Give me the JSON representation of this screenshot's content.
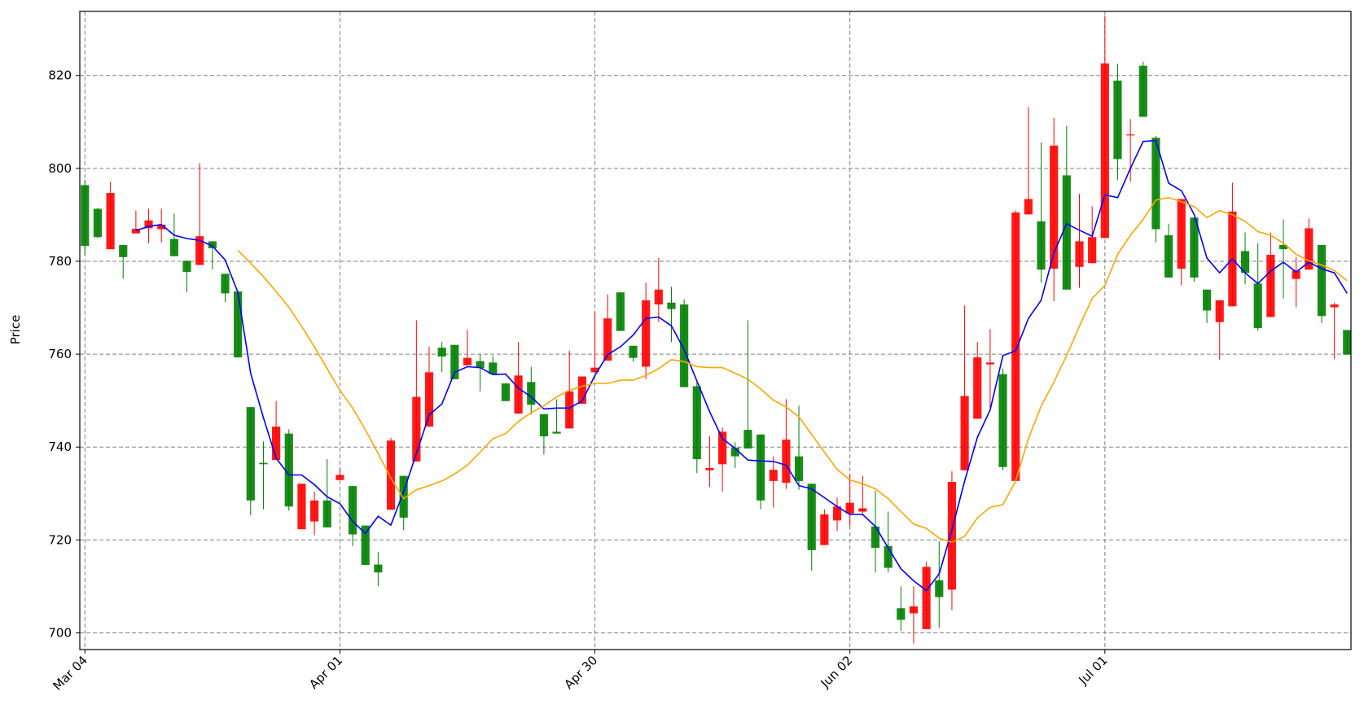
{
  "chart_data": {
    "type": "candlestick",
    "ylabel": "Price",
    "xlim": [
      -0.4,
      99.3
    ],
    "xticks": [
      {
        "value": 0,
        "label": "Mar 04"
      },
      {
        "value": 20,
        "label": "Apr 01"
      },
      {
        "value": 40,
        "label": "Apr 30"
      },
      {
        "value": 60,
        "label": "Jun 02"
      },
      {
        "value": 80,
        "label": "Jul 01"
      }
    ],
    "ylim": [
      696.4,
      833.8
    ],
    "yticks": [
      700,
      720,
      740,
      760,
      780,
      800,
      820
    ],
    "grid": true,
    "up_color": "green",
    "down_color": "red",
    "open": [
      783.3,
      785.2,
      794.7,
      780.9,
      787,
      788.8,
      787.9,
      781.1,
      777.7,
      785.4,
      782.8,
      773.1,
      759.3,
      728.5,
      736.3,
      744.4,
      727.2,
      732.1,
      728.5,
      722.7,
      734.0,
      721.2,
      714.6,
      713.0,
      741.4,
      724.8,
      750.8,
      756.1,
      759.5,
      754.6,
      759.2,
      757,
      755.7,
      749.9,
      755.4,
      749.1,
      742.3,
      742.9,
      752,
      755.2,
      757.1,
      767.7,
      765,
      759.2,
      771.6,
      773.9,
      769.7,
      752.9,
      737.4,
      735.5,
      743.3,
      738,
      739.7,
      728.5,
      735.1,
      741.6,
      732.7,
      717.8,
      725.5,
      727.2,
      728,
      726.8,
      718.3,
      714,
      702.8,
      705.7,
      714.2,
      707.7,
      732.5,
      751,
      759.3,
      758.2,
      735.7,
      790.5,
      793.4,
      778.2,
      804.9,
      773.9,
      784.3,
      785.2,
      822.6,
      802,
      807.3,
      811.1,
      786.9,
      776.5,
      793.4,
      776.5,
      769.4,
      771.6,
      790.7,
      777.5,
      765.6,
      781.4,
      782.6,
      778,
      787.1,
      768.2,
      770.7,
      759.9
    ],
    "high": [
      797.5,
      791.5,
      797.1,
      783.5,
      790.9,
      791.3,
      791.3,
      790.3,
      780.1,
      801.1,
      784.3,
      777.3,
      773.5,
      748.6,
      741.2,
      749.9,
      743.8,
      732.1,
      730.4,
      737.4,
      735.5,
      731.6,
      723.1,
      717.4,
      742,
      733.8,
      767.3,
      761.6,
      762.6,
      762,
      765.2,
      760,
      759.7,
      753.7,
      762.6,
      757.3,
      747.1,
      750.3,
      760.7,
      755.2,
      769.2,
      772.9,
      773.3,
      761.8,
      775.4,
      780.7,
      774.5,
      771.8,
      753.9,
      742.3,
      744.2,
      741,
      767.3,
      742.7,
      738,
      750.3,
      748.9,
      732.1,
      726.6,
      729.1,
      734.2,
      733.8,
      730.6,
      726.1,
      710,
      710,
      715.3,
      719.7,
      734.8,
      770.5,
      762.6,
      765.4,
      756.9,
      790.9,
      813.2,
      805.6,
      810.9,
      809.2,
      794.5,
      791.8,
      832.8,
      822.5,
      810.6,
      823,
      807,
      788.1,
      793.4,
      789.4,
      773.9,
      771.6,
      796.9,
      786.2,
      783.9,
      786.2,
      789,
      780.9,
      789.2,
      783.5,
      771.1,
      765.2
    ],
    "low": [
      781.4,
      785,
      782.6,
      776.3,
      786,
      783.9,
      784,
      781.1,
      773.3,
      779.2,
      778.2,
      771.2,
      759.3,
      725.3,
      726.6,
      737.2,
      726.3,
      722.3,
      721,
      722.7,
      732.9,
      718.7,
      714.6,
      710,
      726.5,
      722.1,
      736.9,
      744.4,
      756.1,
      754.6,
      757.6,
      752,
      755.7,
      749.9,
      747.2,
      747,
      738.4,
      742.9,
      744,
      749.3,
      756.1,
      758.6,
      765,
      758.4,
      754.6,
      766.9,
      762.6,
      752.9,
      734.4,
      731.4,
      730.4,
      735.5,
      739.7,
      726.6,
      727,
      731,
      730.8,
      713.4,
      718.9,
      721.9,
      722.9,
      725.3,
      713,
      713,
      700.4,
      697.7,
      700.8,
      701.1,
      704.9,
      735,
      746.1,
      748.4,
      735,
      732.7,
      790.1,
      775.4,
      771.4,
      773.9,
      774.3,
      779.6,
      785,
      797.5,
      797.1,
      811.1,
      784.1,
      776.5,
      774.8,
      775.6,
      766.7,
      758.8,
      770.3,
      775,
      765,
      768,
      772,
      770.1,
      778.2,
      766.7,
      759,
      759.9
    ],
    "close": [
      796.4,
      791.3,
      782.6,
      783.5,
      786,
      787.1,
      786.9,
      784.8,
      780.1,
      779.2,
      784.3,
      777.3,
      773.5,
      748.6,
      736.6,
      737.2,
      742.9,
      722.3,
      724,
      728.5,
      732.9,
      731.6,
      723.1,
      714.7,
      726.5,
      733.8,
      736.9,
      744.4,
      761.4,
      762,
      757.6,
      758.5,
      758.2,
      753.7,
      747.2,
      754,
      747.1,
      743.3,
      744,
      749.3,
      756.1,
      758.6,
      773.3,
      761.8,
      757.3,
      770.7,
      771.1,
      770.7,
      753.1,
      735,
      736.3,
      739.9,
      743.7,
      742.7,
      732.7,
      732.3,
      738,
      732.1,
      718.9,
      724.2,
      725.7,
      726.1,
      722.9,
      718.7,
      705.3,
      704.2,
      700.8,
      711.3,
      709.3,
      735,
      746.1,
      757.8,
      755.7,
      732.7,
      790.1,
      788.6,
      778.4,
      798.5,
      778.8,
      779.6,
      785,
      818.9,
      807.1,
      822.1,
      806.6,
      785.6,
      778.4,
      789.4,
      773.9,
      766.9,
      770.3,
      782.2,
      775.2,
      768,
      783.5,
      776.2,
      778.2,
      783.5,
      770.1,
      765.2
    ],
    "lines": [
      {
        "color": "blue",
        "values": [
          null,
          null,
          null,
          null,
          786.6,
          787.5,
          787.9,
          785.6,
          784.9,
          784.5,
          783.3,
          780.3,
          773.3,
          755.9,
          746.3,
          737.6,
          734,
          734,
          731.9,
          729.3,
          727.8,
          724,
          721.4,
          725.1,
          723.2,
          730.4,
          738.6,
          746.9,
          749.3,
          756.1,
          757.3,
          757.1,
          755.6,
          755.7,
          752.7,
          750.8,
          748.2,
          748.4,
          748.4,
          749.9,
          755.4,
          759.9,
          761.6,
          764.1,
          767.7,
          768,
          766.1,
          761,
          754.2,
          747.6,
          741.8,
          739.7,
          737.2,
          737,
          736.9,
          736.1,
          731.7,
          731,
          729.1,
          727.2,
          725.5,
          725.5,
          722.9,
          718.3,
          713.8,
          711.2,
          709.1,
          712.7,
          722.1,
          732.7,
          742.1,
          748,
          759.7,
          760.7,
          767.7,
          771.6,
          781.8,
          788.1,
          786.7,
          785.4,
          794.3,
          793.7,
          800,
          805.8,
          806,
          796.8,
          795.2,
          790.1,
          780.7,
          777.5,
          780.5,
          777.5,
          775.2,
          777.9,
          779.8,
          777.7,
          779.8,
          778.4,
          777.5,
          773.1
        ]
      },
      {
        "color": "orange",
        "values": [
          null,
          null,
          null,
          null,
          null,
          null,
          null,
          null,
          null,
          null,
          null,
          null,
          782.4,
          779.6,
          776.7,
          773.5,
          770.1,
          766,
          761.6,
          756.9,
          752.2,
          748.4,
          743.7,
          738.6,
          733.3,
          728.9,
          730.8,
          731.7,
          732.7,
          734.2,
          736.1,
          738.9,
          741.8,
          742.9,
          745.5,
          747.4,
          748.9,
          750.8,
          752.2,
          753.1,
          753.7,
          753.7,
          754.4,
          754.4,
          755.4,
          756.9,
          758.8,
          758.4,
          757.3,
          757.1,
          757.1,
          755.9,
          754.6,
          752.5,
          750.1,
          748.6,
          746.5,
          742.7,
          738.9,
          735.2,
          732.9,
          732.1,
          731,
          728.9,
          726.1,
          723.4,
          722.5,
          720.4,
          719.5,
          720.8,
          724.8,
          727,
          727.6,
          732.7,
          741.8,
          748.8,
          754,
          759.7,
          766,
          772,
          774.8,
          781.5,
          785.6,
          789,
          793.2,
          793.7,
          792.8,
          791.8,
          789.4,
          790.9,
          790,
          788.6,
          786.4,
          785.6,
          783.9,
          781.5,
          780.1,
          779.2,
          778,
          775.8
        ]
      }
    ]
  }
}
